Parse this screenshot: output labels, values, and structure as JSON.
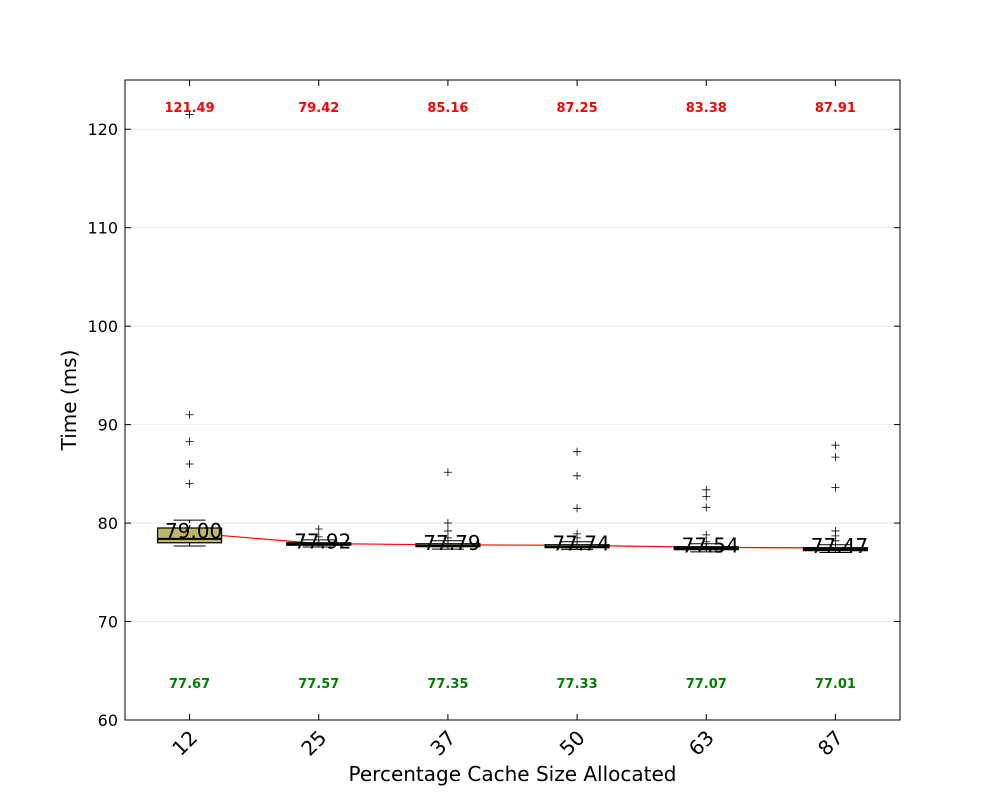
{
  "colors": {
    "box_fill": "#bdb76b",
    "box_edge": "#000000",
    "median_line": "#000000",
    "trend_line": "#ff0000",
    "max_label": "#ff0000",
    "min_label": "#008000",
    "grid": "#dddddd",
    "outlier": "#000000"
  },
  "chart_data": {
    "type": "box",
    "xlabel": "Percentage Cache Size Allocated",
    "ylabel": "Time (ms)",
    "ylim": [
      60,
      125
    ],
    "yticks": [
      "60",
      "70",
      "80",
      "90",
      "100",
      "110",
      "120"
    ],
    "ytick_values": [
      60,
      70,
      80,
      90,
      100,
      110,
      120
    ],
    "grid": true,
    "categories": [
      "12",
      "25",
      "37",
      "50",
      "63",
      "87"
    ],
    "boxes": [
      {
        "q1": 78.0,
        "median": 78.4,
        "q3": 79.5,
        "whisker_low": 77.67,
        "whisker_high": 80.3,
        "outliers": [
          84.0,
          86.0,
          88.3,
          91.0,
          121.49
        ]
      },
      {
        "q1": 77.75,
        "median": 77.85,
        "q3": 78.0,
        "whisker_low": 77.57,
        "whisker_high": 78.3,
        "outliers": [
          78.6,
          79.4
        ]
      },
      {
        "q1": 77.6,
        "median": 77.7,
        "q3": 77.9,
        "whisker_low": 77.35,
        "whisker_high": 78.2,
        "outliers": [
          78.5,
          79.2,
          80.0,
          85.16
        ]
      },
      {
        "q1": 77.5,
        "median": 77.6,
        "q3": 77.8,
        "whisker_low": 77.33,
        "whisker_high": 78.1,
        "outliers": [
          78.5,
          78.9,
          81.5,
          84.8,
          87.25
        ]
      },
      {
        "q1": 77.3,
        "median": 77.45,
        "q3": 77.6,
        "whisker_low": 77.07,
        "whisker_high": 77.9,
        "outliers": [
          78.1,
          78.8,
          81.6,
          82.7,
          83.38
        ]
      },
      {
        "q1": 77.2,
        "median": 77.35,
        "q3": 77.5,
        "whisker_low": 77.01,
        "whisker_high": 77.8,
        "outliers": [
          78.2,
          78.7,
          79.2,
          83.6,
          86.7,
          87.91
        ]
      }
    ],
    "mean_values": [
      79.0,
      77.92,
      77.79,
      77.74,
      77.54,
      77.47
    ],
    "mean_labels": [
      "79.00",
      "77.92",
      "77.79",
      "77.74",
      "77.54",
      "77.47"
    ],
    "max_labels": [
      "121.49",
      "79.42",
      "85.16",
      "87.25",
      "83.38",
      "87.91"
    ],
    "min_labels": [
      "77.67",
      "77.57",
      "77.35",
      "77.33",
      "77.07",
      "77.01"
    ]
  }
}
